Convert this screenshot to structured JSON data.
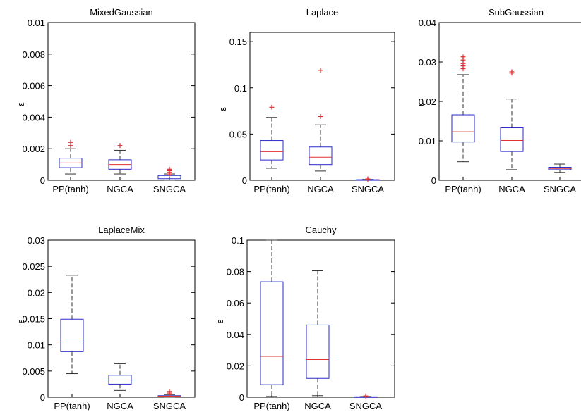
{
  "figure": {
    "chart_data": [
      {
        "type": "boxplot",
        "title": "MixedGaussian",
        "ylabel": "ε",
        "ylim": [
          0,
          0.01
        ],
        "yticks": [
          "0",
          "0.002",
          "0.004",
          "0.006",
          "0.008",
          "0.01"
        ],
        "ytick_values": [
          0,
          0.002,
          0.004,
          0.006,
          0.008,
          0.01
        ],
        "categories": [
          "PP(tanh)",
          "NGCA",
          "SNGCA"
        ],
        "boxes": [
          {
            "whisker_low": 0.0004,
            "q1": 0.0008,
            "median": 0.0011,
            "q3": 0.0014,
            "whisker_high": 0.002,
            "outliers": [
              0.0022,
              0.0024
            ]
          },
          {
            "whisker_low": 0.0004,
            "q1": 0.0007,
            "median": 0.001,
            "q3": 0.0013,
            "whisker_high": 0.0019,
            "outliers": [
              0.0022
            ]
          },
          {
            "whisker_low": 0.0,
            "q1": 0.0001,
            "median": 0.0002,
            "q3": 0.0003,
            "whisker_high": 0.0004,
            "outliers": [
              0.0004,
              0.0005,
              0.0006,
              0.0007
            ]
          }
        ]
      },
      {
        "type": "boxplot",
        "title": "Laplace",
        "ylabel": "ε",
        "ylim": [
          0,
          0.16
        ],
        "yticks": [
          "0",
          "0.05",
          "0.1",
          "0.15"
        ],
        "ytick_values": [
          0,
          0.05,
          0.1,
          0.15
        ],
        "categories": [
          "PP(tanh)",
          "NGCA",
          "SNGCA"
        ],
        "boxes": [
          {
            "whisker_low": 0.013,
            "q1": 0.022,
            "median": 0.031,
            "q3": 0.043,
            "whisker_high": 0.068,
            "outliers": [
              0.079
            ]
          },
          {
            "whisker_low": 0.01,
            "q1": 0.017,
            "median": 0.025,
            "q3": 0.036,
            "whisker_high": 0.06,
            "outliers": [
              0.069,
              0.119
            ]
          },
          {
            "whisker_low": 0.0,
            "q1": 0.0002,
            "median": 0.0004,
            "q3": 0.0007,
            "whisker_high": 0.001,
            "outliers": [
              0.0012,
              0.0015
            ]
          }
        ]
      },
      {
        "type": "boxplot",
        "title": "SubGaussian",
        "ylabel": "ε",
        "ylim": [
          0,
          0.04
        ],
        "yticks": [
          "0",
          "0.01",
          "0.02",
          "0.03",
          "0.04"
        ],
        "ytick_values": [
          0,
          0.01,
          0.02,
          0.03,
          0.04
        ],
        "categories": [
          "PP(tanh)",
          "NGCA",
          "SNGCA"
        ],
        "boxes": [
          {
            "whisker_low": 0.0047,
            "q1": 0.0097,
            "median": 0.0123,
            "q3": 0.0166,
            "whisker_high": 0.0268,
            "outliers": [
              0.0283,
              0.029,
              0.0296,
              0.0305,
              0.0313
            ]
          },
          {
            "whisker_low": 0.0027,
            "q1": 0.0073,
            "median": 0.0101,
            "q3": 0.0133,
            "whisker_high": 0.0206,
            "outliers": [
              0.0272,
              0.0275
            ]
          },
          {
            "whisker_low": 0.002,
            "q1": 0.0027,
            "median": 0.003,
            "q3": 0.0033,
            "whisker_high": 0.0041,
            "outliers": []
          }
        ]
      },
      {
        "type": "boxplot",
        "title": "LaplaceMix",
        "ylabel": "ε",
        "ylim": [
          0,
          0.03
        ],
        "yticks": [
          "0",
          "0.005",
          "0.01",
          "0.015",
          "0.02",
          "0.025",
          "0.03"
        ],
        "ytick_values": [
          0,
          0.005,
          0.01,
          0.015,
          0.02,
          0.025,
          0.03
        ],
        "categories": [
          "PP(tanh)",
          "NGCA",
          "SNGCA"
        ],
        "boxes": [
          {
            "whisker_low": 0.0045,
            "q1": 0.0087,
            "median": 0.0111,
            "q3": 0.0149,
            "whisker_high": 0.0233,
            "outliers": []
          },
          {
            "whisker_low": 0.0013,
            "q1": 0.0025,
            "median": 0.0033,
            "q3": 0.0042,
            "whisker_high": 0.0064,
            "outliers": []
          },
          {
            "whisker_low": 0.0,
            "q1": 0.0001,
            "median": 0.0002,
            "q3": 0.0003,
            "whisker_high": 0.0005,
            "outliers": [
              0.0006,
              0.0008,
              0.0011
            ]
          }
        ]
      },
      {
        "type": "boxplot",
        "title": "Cauchy",
        "ylabel": "ε",
        "ylim": [
          0,
          0.1
        ],
        "yticks": [
          "0",
          "0.02",
          "0.04",
          "0.06",
          "0.08",
          "0.1"
        ],
        "ytick_values": [
          0,
          0.02,
          0.04,
          0.06,
          0.08,
          0.1
        ],
        "categories": [
          "PP(tanh)",
          "NGCA",
          "SNGCA"
        ],
        "boxes": [
          {
            "whisker_low": 0.0005,
            "q1": 0.008,
            "median": 0.026,
            "q3": 0.0735,
            "whisker_high": 0.1,
            "outliers": []
          },
          {
            "whisker_low": 0.001,
            "q1": 0.012,
            "median": 0.024,
            "q3": 0.046,
            "whisker_high": 0.0805,
            "outliers": []
          },
          {
            "whisker_low": 0.0,
            "q1": 0.0001,
            "median": 0.0002,
            "q3": 0.0003,
            "whisker_high": 0.0005,
            "outliers": [
              0.0008
            ]
          }
        ]
      }
    ]
  },
  "colors": {
    "box": "#2b2bc9",
    "median": "#e03030",
    "outlier": "#e03030",
    "whisker": "#333333",
    "axis": "#000000"
  }
}
